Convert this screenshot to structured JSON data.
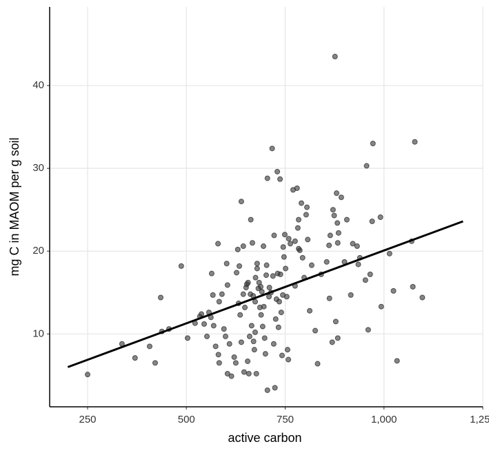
{
  "chart_data": {
    "type": "scatter",
    "xlabel": "active carbon",
    "ylabel": "mg C in MAOM per g soil",
    "x": [
      250,
      337,
      370,
      407,
      421,
      435,
      438,
      456,
      487,
      503,
      522,
      534,
      538,
      545,
      552,
      557,
      562,
      564,
      567,
      569,
      574,
      580,
      581,
      583,
      583,
      590,
      595,
      599,
      602,
      604,
      604,
      609,
      614,
      621,
      625,
      627,
      630,
      632,
      634,
      636,
      639,
      639,
      644,
      644,
      646,
      648,
      651,
      653,
      655,
      656,
      658,
      660,
      662,
      663,
      665,
      667,
      669,
      670,
      672,
      674,
      674,
      675,
      677,
      679,
      679,
      682,
      684,
      686,
      688,
      689,
      691,
      693,
      695,
      696,
      698,
      700,
      702,
      703,
      705,
      705,
      709,
      710,
      714,
      717,
      719,
      721,
      722,
      724,
      726,
      728,
      730,
      731,
      733,
      735,
      737,
      738,
      740,
      742,
      744,
      745,
      747,
      749,
      751,
      754,
      756,
      758,
      759,
      763,
      770,
      775,
      775,
      780,
      782,
      784,
      784,
      787,
      791,
      794,
      798,
      803,
      805,
      807,
      812,
      817,
      826,
      832,
      841,
      855,
      861,
      862,
      864,
      869,
      871,
      874,
      876,
      878,
      880,
      882,
      883,
      883,
      885,
      892,
      900,
      906,
      916,
      921,
      932,
      935,
      939,
      953,
      956,
      960,
      965,
      970,
      972,
      991,
      993,
      1014,
      1024,
      1033,
      1070,
      1073,
      1078,
      1097
    ],
    "values": [
      5.1,
      8.8,
      7.1,
      8.5,
      6.5,
      14.4,
      10.3,
      10.6,
      18.2,
      9.5,
      11.3,
      12.1,
      12.4,
      11.2,
      9.7,
      12.6,
      12.0,
      17.3,
      14.7,
      11.0,
      8.5,
      20.9,
      7.5,
      6.5,
      13.9,
      14.8,
      10.6,
      9.7,
      18.5,
      15.9,
      5.2,
      8.8,
      4.9,
      7.2,
      6.5,
      17.4,
      20.2,
      13.7,
      18.2,
      12.3,
      26.0,
      9.0,
      20.6,
      14.8,
      5.4,
      13.2,
      15.6,
      16.0,
      6.7,
      16.2,
      5.2,
      9.7,
      14.8,
      23.8,
      11.0,
      21.0,
      14.6,
      9.1,
      8.1,
      13.9,
      10.2,
      16.8,
      5.2,
      18.5,
      17.9,
      15.5,
      16.2,
      13.2,
      15.7,
      12.3,
      15.1,
      10.9,
      20.6,
      13.3,
      9.5,
      7.6,
      17.1,
      18.3,
      3.2,
      28.8,
      14.5,
      15.6,
      15.0,
      32.4,
      17.0,
      8.8,
      21.9,
      3.5,
      11.8,
      14.2,
      29.6,
      17.3,
      10.8,
      13.9,
      28.7,
      17.2,
      12.6,
      7.4,
      14.7,
      20.5,
      19.3,
      22.0,
      17.9,
      14.5,
      8.1,
      6.9,
      21.5,
      20.9,
      27.4,
      15.8,
      21.2,
      27.6,
      22.8,
      23.8,
      20.3,
      20.1,
      25.8,
      19.2,
      16.8,
      24.4,
      25.3,
      21.4,
      12.8,
      18.3,
      10.4,
      6.4,
      17.2,
      18.7,
      20.7,
      14.3,
      21.9,
      9.0,
      25.0,
      24.3,
      43.5,
      11.5,
      27.0,
      23.4,
      21.0,
      9.5,
      22.2,
      26.5,
      18.7,
      23.8,
      14.7,
      20.9,
      20.6,
      18.4,
      19.2,
      16.5,
      30.3,
      10.5,
      17.2,
      23.6,
      33.0,
      24.1,
      13.3,
      19.7,
      15.2,
      6.75,
      21.2,
      15.7,
      33.2,
      14.4
    ],
    "color": "#333333",
    "trend_line": {
      "x": [
        200,
        1200
      ],
      "y": [
        6.0,
        23.6
      ],
      "color": "#000000"
    },
    "xlim": [
      154,
      1250
    ],
    "ylim": [
      1.2,
      49.5
    ],
    "xticks": [
      250,
      500,
      750,
      {
        "value": 1000,
        "label": "1,000"
      },
      {
        "value": 1250,
        "label": "1,250"
      }
    ],
    "yticks": [
      10,
      20,
      30,
      40
    ],
    "grid": true
  }
}
